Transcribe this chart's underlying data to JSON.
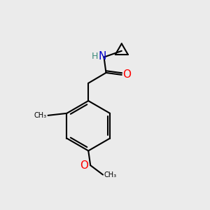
{
  "background_color": "#ebebeb",
  "bond_color": "#000000",
  "bond_width": 1.5,
  "figsize": [
    3.0,
    3.0
  ],
  "dpi": 100,
  "atoms": {
    "N": {
      "color": "#0000cd",
      "fontsize": 10
    },
    "O": {
      "color": "#ff0000",
      "fontsize": 10
    },
    "H": {
      "color": "#4a9a8a",
      "fontsize": 8
    },
    "C": {
      "color": "#000000",
      "fontsize": 8
    }
  }
}
